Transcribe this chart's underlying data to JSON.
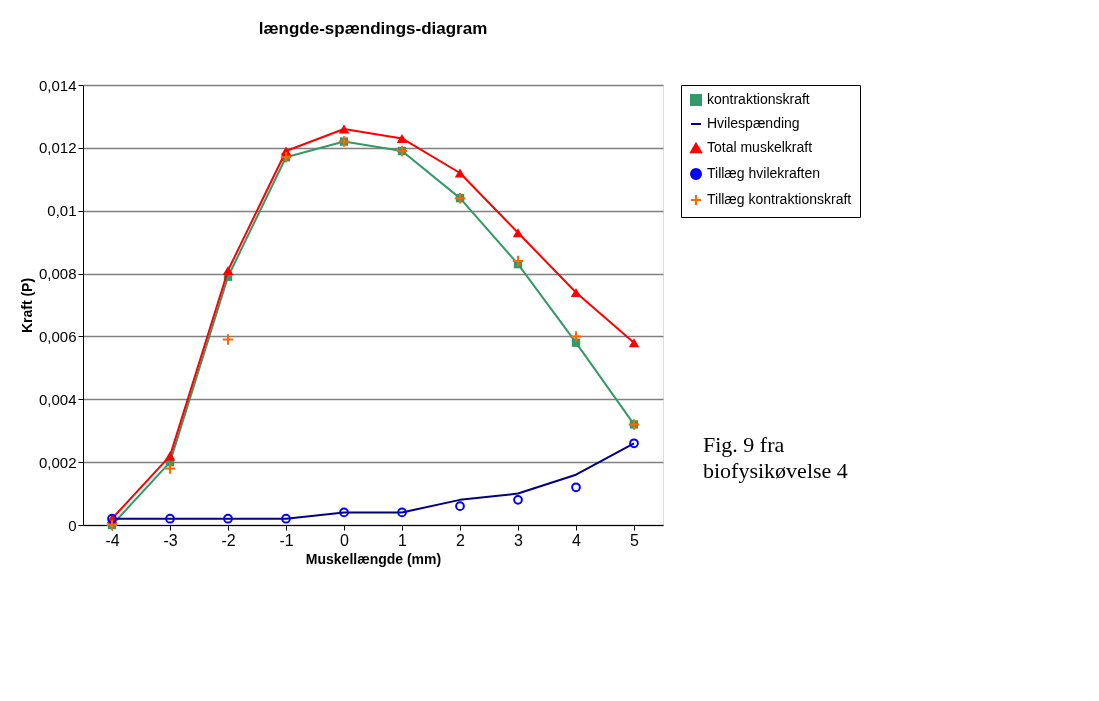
{
  "chart_data": {
    "type": "line",
    "title": "længde-spændings-diagram",
    "xlabel": "Muskellængde (mm)",
    "ylabel": "Kraft (P)",
    "categories": [
      "-4",
      "-3",
      "-2",
      "-1",
      "0",
      "1",
      "2",
      "3",
      "4",
      "5"
    ],
    "series": [
      {
        "name": "kontraktionskraft",
        "marker": "square",
        "color": "#339966",
        "values": [
          0,
          0.002,
          0.0079,
          0.0117,
          0.0122,
          0.0119,
          0.0104,
          0.0083,
          0.0058,
          0.0032
        ]
      },
      {
        "name": "Hvilespænding",
        "marker": "none",
        "color": "#000080",
        "values": [
          0.0002,
          0.0002,
          0.0002,
          0.0002,
          0.0004,
          0.0004,
          0.0008,
          0.001,
          0.0016,
          0.0026
        ]
      },
      {
        "name": "Total muskelkraft",
        "marker": "triangle",
        "color": "#ff0000",
        "values": [
          0.0002,
          0.0022,
          0.0081,
          0.0119,
          0.0126,
          0.0123,
          0.0112,
          0.0093,
          0.0074,
          0.0058
        ]
      },
      {
        "name": "Tillæg hvilekraften",
        "type": "scatter",
        "marker": "circle",
        "color": "#0000ff",
        "values": [
          0.0002,
          0.0002,
          0.0002,
          0.0002,
          0.0004,
          0.0004,
          0.0006,
          0.0008,
          0.0012,
          0.0026
        ]
      },
      {
        "name": "Tillæg kontraktionskraft",
        "type": "scatter",
        "marker": "cross",
        "color": "#ff6600",
        "values": [
          0,
          0.0018,
          0.0059,
          0.0117,
          0.0122,
          0.0119,
          0.0104,
          0.0084,
          0.006,
          0.0032
        ]
      }
    ],
    "ylim": [
      0,
      0.014
    ],
    "yticks": [
      0,
      {
        "value": 0.002,
        "label": "0,002"
      },
      {
        "value": 0.004,
        "label": "0,004"
      },
      {
        "value": 0.006,
        "label": "0,006"
      },
      {
        "value": 0.008,
        "label": "0,008"
      },
      {
        "value": 0.01,
        "label": "0,01"
      },
      {
        "value": 0.012,
        "label": "0,012"
      },
      {
        "value": 0.014,
        "label": "0,014"
      }
    ],
    "grid": "y",
    "legend": "right",
    "annotations": [
      "Fig. 9 fra\nbiofysikøvelse 4"
    ]
  }
}
